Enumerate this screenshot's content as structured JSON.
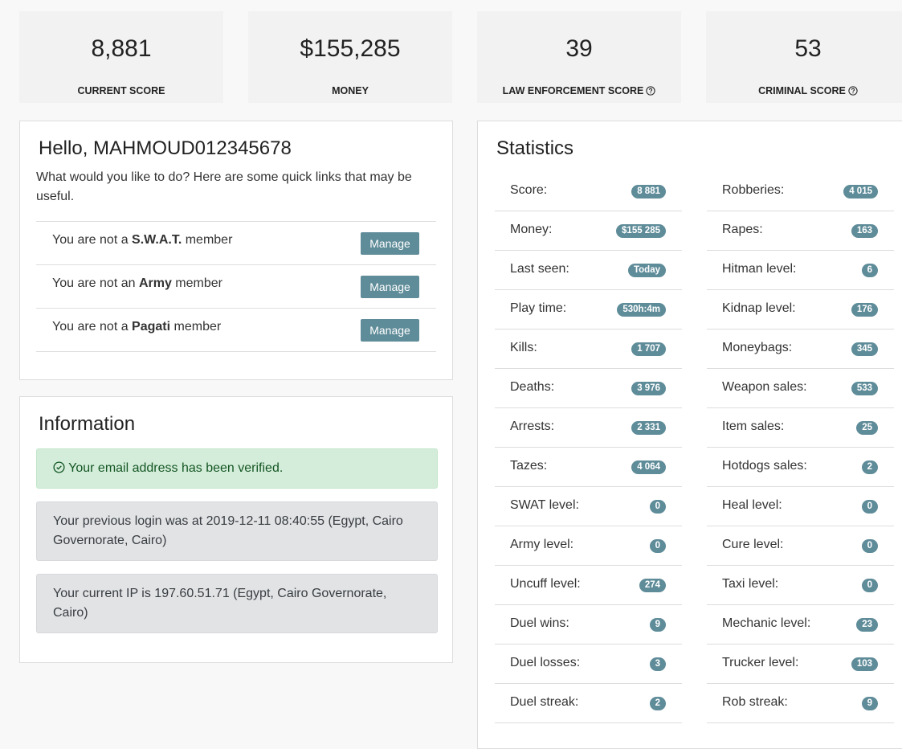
{
  "summary_cards": [
    {
      "value": "8,881",
      "label": "CURRENT SCORE",
      "help": false
    },
    {
      "value": "$155,285",
      "label": "MONEY",
      "help": false
    },
    {
      "value": "39",
      "label": "LAW ENFORCEMENT SCORE",
      "help": true
    },
    {
      "value": "53",
      "label": "CRIMINAL SCORE",
      "help": true
    }
  ],
  "welcome": {
    "title": "Hello, MAHMOUD012345678",
    "intro": "What would you like to do? Here are some quick links that may be useful.",
    "memberships": [
      {
        "prefix": "You are not a ",
        "group": "S.W.A.T.",
        "suffix": " member",
        "button": "Manage"
      },
      {
        "prefix": "You are not an ",
        "group": "Army",
        "suffix": " member",
        "button": "Manage"
      },
      {
        "prefix": "You are not a ",
        "group": "Pagati",
        "suffix": " member",
        "button": "Manage"
      }
    ]
  },
  "information": {
    "title": "Information",
    "alerts": [
      "Your email address has been verified.",
      "Your previous login was at 2019-12-11 08:40:55 (Egypt, Cairo Governorate, Cairo)",
      "Your current IP is 197.60.51.71 (Egypt, Cairo Governorate, Cairo)"
    ]
  },
  "statistics": {
    "title": "Statistics",
    "columns": [
      [
        {
          "label": "Score:",
          "value": "8 881"
        },
        {
          "label": "Money:",
          "value": "$155 285"
        },
        {
          "label": "Last seen:",
          "value": "Today"
        },
        {
          "label": "Play time:",
          "value": "530h:4m"
        },
        {
          "label": "Kills:",
          "value": "1 707"
        },
        {
          "label": "Deaths:",
          "value": "3 976"
        },
        {
          "label": "Arrests:",
          "value": "2 331"
        },
        {
          "label": "Tazes:",
          "value": "4 064"
        },
        {
          "label": "SWAT level:",
          "value": "0"
        },
        {
          "label": "Army level:",
          "value": "0"
        },
        {
          "label": "Uncuff level:",
          "value": "274"
        },
        {
          "label": "Duel wins:",
          "value": "9"
        },
        {
          "label": "Duel losses:",
          "value": "3"
        },
        {
          "label": "Duel streak:",
          "value": "2"
        }
      ],
      [
        {
          "label": "Robberies:",
          "value": "4 015"
        },
        {
          "label": "Rapes:",
          "value": "163"
        },
        {
          "label": "Hitman level:",
          "value": "6"
        },
        {
          "label": "Kidnap level:",
          "value": "176"
        },
        {
          "label": "Moneybags:",
          "value": "345"
        },
        {
          "label": "Weapon sales:",
          "value": "533"
        },
        {
          "label": "Item sales:",
          "value": "25"
        },
        {
          "label": "Hotdogs sales:",
          "value": "2"
        },
        {
          "label": "Heal level:",
          "value": "0"
        },
        {
          "label": "Cure level:",
          "value": "0"
        },
        {
          "label": "Taxi level:",
          "value": "0"
        },
        {
          "label": "Mechanic level:",
          "value": "23"
        },
        {
          "label": "Trucker level:",
          "value": "103"
        },
        {
          "label": "Rob streak:",
          "value": "9"
        }
      ]
    ]
  }
}
